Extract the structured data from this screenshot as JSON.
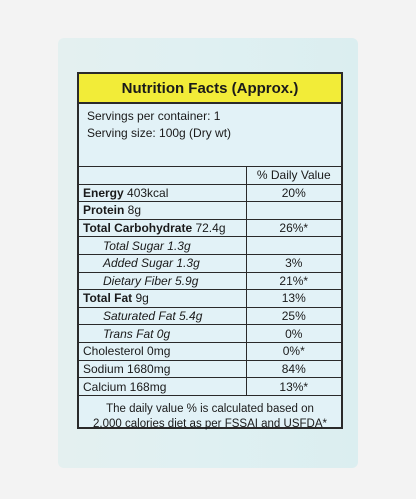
{
  "header": {
    "title": "Nutrition Facts (Approx.)"
  },
  "serving": {
    "per_container": "Servings per container: 1",
    "size": "Serving size: 100g (Dry wt)"
  },
  "table": {
    "dv_header": "% Daily Value",
    "rows": [
      {
        "bold_label": "Energy",
        "rest": " 403kcal",
        "dv": "20%"
      },
      {
        "bold_label": "Protein",
        "rest": " 8g",
        "dv": ""
      },
      {
        "bold_label": "Total Carbohydrate",
        "rest": " 72.4g",
        "dv": "26%*"
      },
      {
        "label": "Total Sugar 1.3g",
        "dv": "",
        "indent": true
      },
      {
        "label": "Added Sugar 1.3g",
        "dv": "3%",
        "indent": true
      },
      {
        "label": "Dietary Fiber 5.9g",
        "dv": "21%*",
        "indent": true
      },
      {
        "bold_label": "Total Fat",
        "rest": " 9g",
        "dv": "13%"
      },
      {
        "label": "Saturated Fat 5.4g",
        "dv": "25%",
        "indent": true
      },
      {
        "label": "Trans Fat 0g",
        "dv": "0%",
        "indent": true
      },
      {
        "label": "Cholesterol 0mg",
        "dv": "0%*"
      },
      {
        "label": "Sodium 1680mg",
        "dv": "84%"
      },
      {
        "label": "Calcium 168mg",
        "dv": "13%*"
      }
    ]
  },
  "footnote": {
    "line1": "The daily value % is calculated based on",
    "line2": "2,000 calories diet as per FSSAI and USFDA*"
  }
}
